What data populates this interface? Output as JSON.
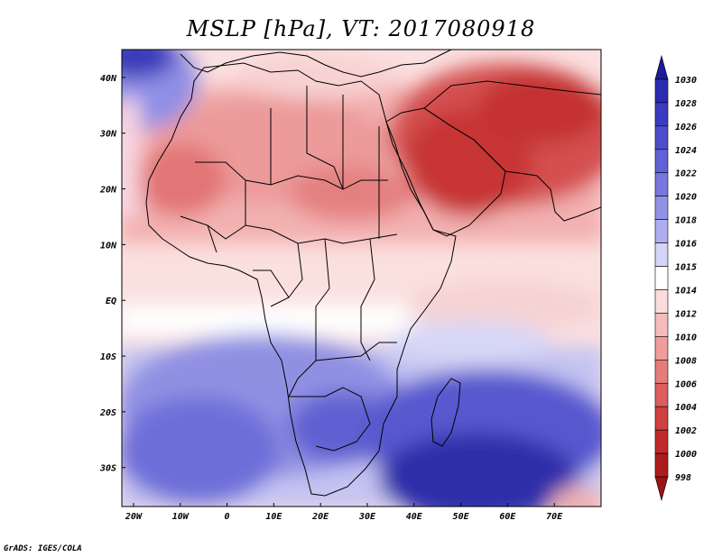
{
  "title": "MSLP [hPa], VT: 2017080918",
  "credit": "GrADS: IGES/COLA",
  "x_axis": {
    "labels": [
      "20W",
      "10W",
      "0",
      "10E",
      "20E",
      "30E",
      "40E",
      "50E",
      "60E",
      "70E"
    ],
    "lon_values": [
      -20,
      -10,
      0,
      10,
      20,
      30,
      40,
      50,
      60,
      70
    ],
    "range": [
      -22.5,
      80
    ]
  },
  "y_axis": {
    "labels": [
      "40N",
      "30N",
      "20N",
      "10N",
      "EQ",
      "10S",
      "20S",
      "30S"
    ],
    "lat_values": [
      40,
      30,
      20,
      10,
      0,
      -10,
      -20,
      -30
    ],
    "range": [
      -37,
      45
    ]
  },
  "colorbar": {
    "labels": [
      "1030",
      "1028",
      "1026",
      "1024",
      "1022",
      "1020",
      "1018",
      "1016",
      "1015",
      "1014",
      "1012",
      "1010",
      "1008",
      "1006",
      "1004",
      "1002",
      "1000",
      "998"
    ],
    "colors": [
      "#1c1c9c",
      "#2b2bb2",
      "#3b3bc2",
      "#4d4dcc",
      "#6161d6",
      "#7777df",
      "#9191e6",
      "#aeaeef",
      "#d4d4f7",
      "#ffffff",
      "#fbdcdc",
      "#f5bcbc",
      "#ee9c9c",
      "#e57c7c",
      "#dc5e5e",
      "#cf4040",
      "#c12a2a",
      "#ad1c1c",
      "#9a1414"
    ]
  },
  "regions": {
    "north_atlantic_high": "1024",
    "sahara_heat_low": "1004",
    "arabian_heat_low": "1000",
    "equatorial_band": "1014",
    "south_indian_ocean_high": "1030",
    "south_atlantic_high": "1022"
  },
  "colors": {
    "land_outline": "#000000",
    "background": "#ffffff"
  }
}
